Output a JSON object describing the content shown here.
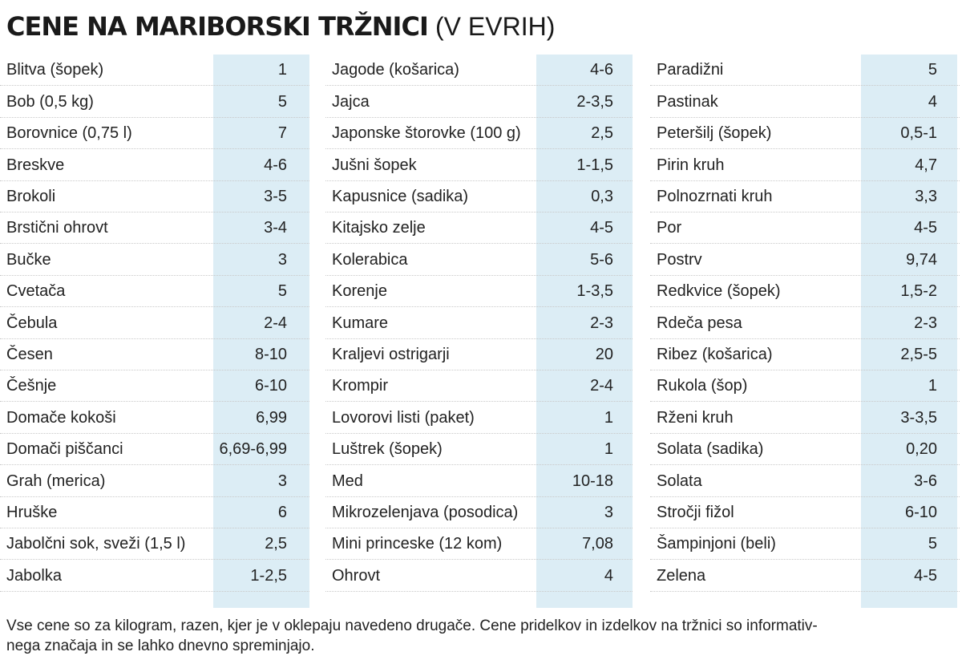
{
  "header": {
    "title_main": "CENE NA MARIBORSKI TRŽNICI",
    "title_sub": "(V EVRIH)"
  },
  "columns": [
    {
      "rows": [
        {
          "name": "Blitva (šopek)",
          "price": "1"
        },
        {
          "name": "Bob (0,5 kg)",
          "price": "5"
        },
        {
          "name": "Borovnice (0,75 l)",
          "price": "7"
        },
        {
          "name": "Breskve",
          "price": "4-6"
        },
        {
          "name": "Brokoli",
          "price": "3-5"
        },
        {
          "name": "Brstični ohrovt",
          "price": "3-4"
        },
        {
          "name": "Bučke",
          "price": "3"
        },
        {
          "name": "Cvetača",
          "price": "5"
        },
        {
          "name": "Čebula",
          "price": "2-4"
        },
        {
          "name": "Česen",
          "price": "8-10"
        },
        {
          "name": "Češnje",
          "price": "6-10"
        },
        {
          "name": "Domače kokoši",
          "price": "6,99"
        },
        {
          "name": "Domači piščanci",
          "price": "6,69-6,99"
        },
        {
          "name": "Grah (merica)",
          "price": "3"
        },
        {
          "name": "Hruške",
          "price": "6"
        },
        {
          "name": "Jabolčni sok, sveži  (1,5 l)",
          "price": "2,5"
        },
        {
          "name": "Jabolka",
          "price": "1-2,5"
        }
      ]
    },
    {
      "rows": [
        {
          "name": "Jagode (košarica)",
          "price": "4-6"
        },
        {
          "name": "Jajca",
          "price": "2-3,5"
        },
        {
          "name": "Japonske štorovke (100 g)",
          "price": "2,5"
        },
        {
          "name": "Jušni šopek",
          "price": "1-1,5"
        },
        {
          "name": "Kapusnice (sadika)",
          "price": "0,3"
        },
        {
          "name": "Kitajsko zelje",
          "price": "4-5"
        },
        {
          "name": "Kolerabica",
          "price": "5-6"
        },
        {
          "name": "Korenje",
          "price": "1-3,5"
        },
        {
          "name": "Kumare",
          "price": "2-3"
        },
        {
          "name": "Kraljevi ostrigarji",
          "price": "20"
        },
        {
          "name": "Krompir",
          "price": "2-4"
        },
        {
          "name": "Lovorovi listi (paket)",
          "price": "1"
        },
        {
          "name": "Luštrek (šopek)",
          "price": "1"
        },
        {
          "name": "Med",
          "price": "10-18"
        },
        {
          "name": "Mikrozelenjava (posodica)",
          "price": "3"
        },
        {
          "name": "Mini princeske (12 kom)",
          "price": "7,08"
        },
        {
          "name": "Ohrovt",
          "price": "4"
        }
      ]
    },
    {
      "rows": [
        {
          "name": "Paradižni",
          "price": "5"
        },
        {
          "name": "Pastinak",
          "price": "4"
        },
        {
          "name": "Peteršilj (šopek)",
          "price": "0,5-1"
        },
        {
          "name": "Pirin kruh",
          "price": "4,7"
        },
        {
          "name": "Polnozrnati kruh",
          "price": "3,3"
        },
        {
          "name": "Por",
          "price": "4-5"
        },
        {
          "name": "Postrv",
          "price": "9,74"
        },
        {
          "name": "Redkvice (šopek)",
          "price": "1,5-2"
        },
        {
          "name": "Rdeča pesa",
          "price": "2-3"
        },
        {
          "name": "Ribez (košarica)",
          "price": "2,5-5"
        },
        {
          "name": "Rukola (šop)",
          "price": "1"
        },
        {
          "name": "Rženi kruh",
          "price": "3-3,5"
        },
        {
          "name": "Solata (sadika)",
          "price": "0,20"
        },
        {
          "name": "Solata",
          "price": "3-6"
        },
        {
          "name": "Stročji fižol",
          "price": "6-10"
        },
        {
          "name": "Šampinjoni (beli)",
          "price": "5"
        },
        {
          "name": "Zelena",
          "price": "4-5"
        }
      ]
    }
  ],
  "footer": {
    "note_line1": "Vse cene so za kilogram, razen, kjer je v oklepaju navedeno drugače. Cene pridelkov in izdelkov na tržnici so informativ-",
    "note_line2": "nega značaja in se lahko dnevno spreminjajo."
  },
  "colors": {
    "price_background": "#dcedf5",
    "text": "#222222"
  }
}
